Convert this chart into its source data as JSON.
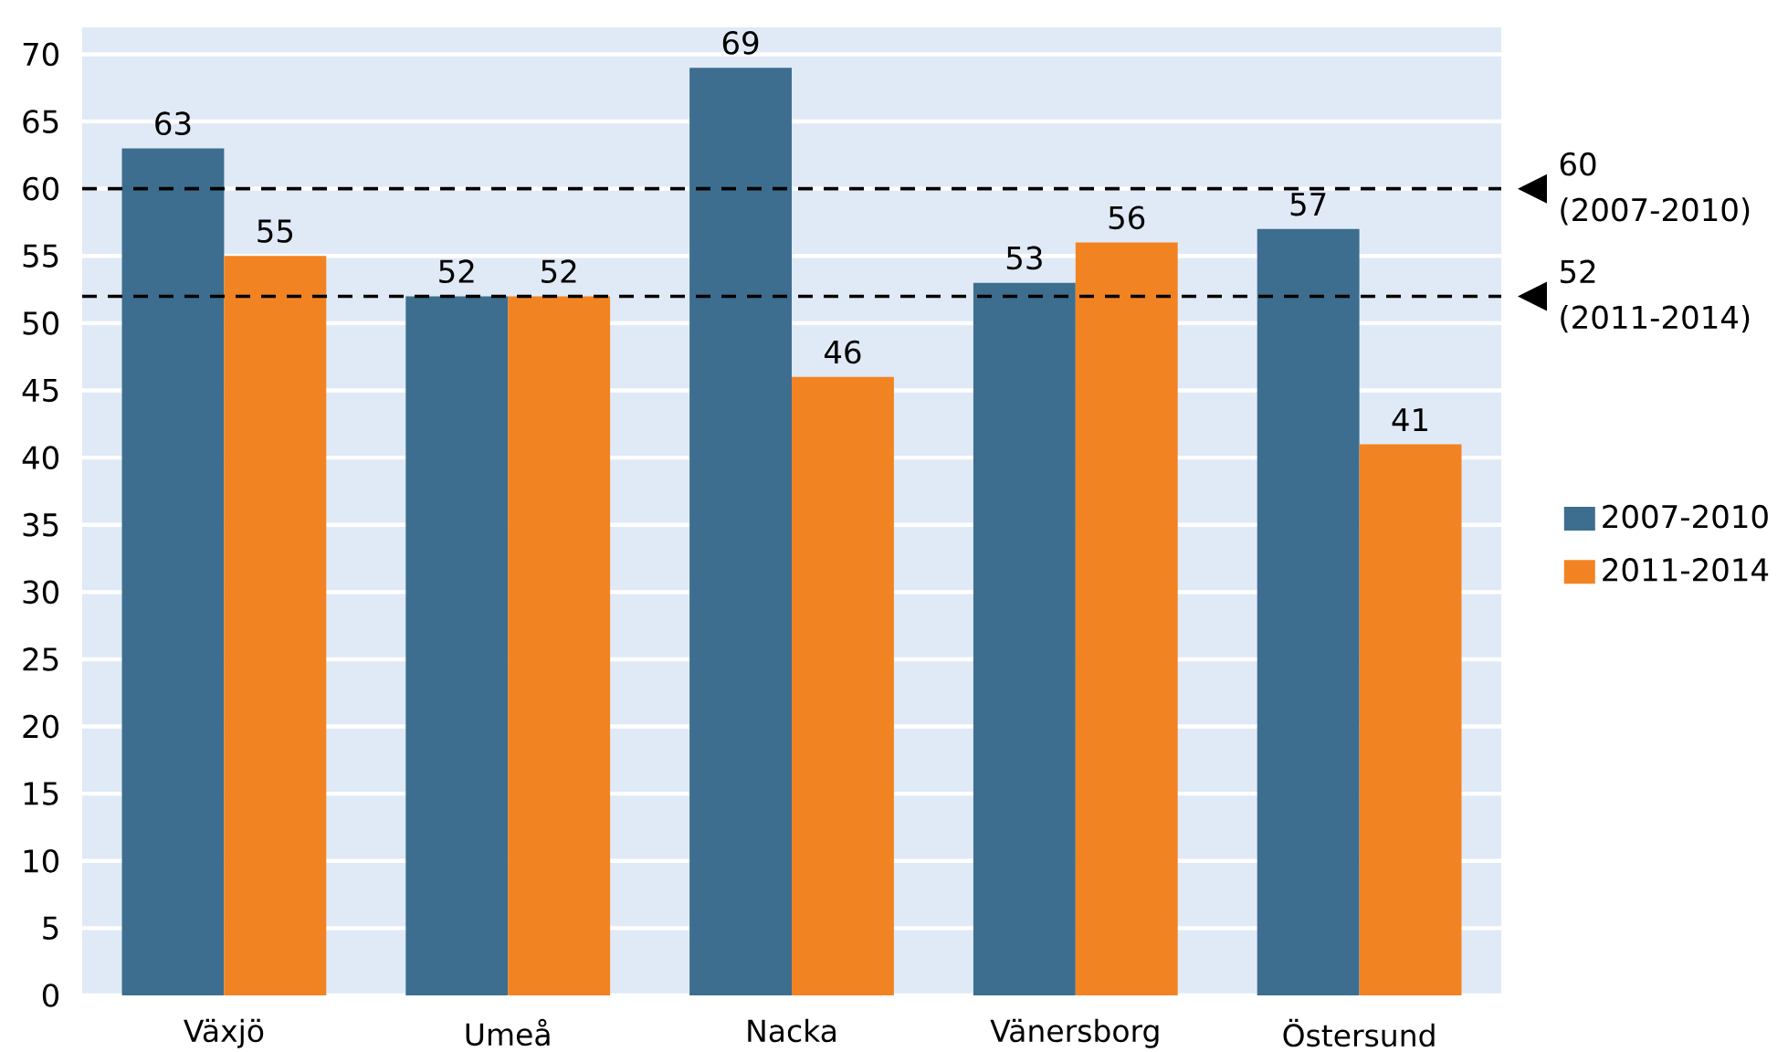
{
  "chart_data": {
    "type": "bar",
    "categories": [
      "Växjö",
      "Umeå",
      "Nacka",
      "Vänersborg",
      "Östersund"
    ],
    "series": [
      {
        "name": "2007-2010",
        "color": "#3d6e8f",
        "values": [
          63,
          52,
          69,
          53,
          57
        ]
      },
      {
        "name": "2011-2014",
        "color": "#f28322",
        "values": [
          55,
          52,
          46,
          56,
          41
        ]
      }
    ],
    "ylim": [
      0,
      72
    ],
    "yticks": [
      0,
      5,
      10,
      15,
      20,
      25,
      30,
      35,
      40,
      45,
      50,
      55,
      60,
      65,
      70
    ],
    "grid": "y",
    "legend": "right",
    "data_labels": true,
    "ref_lines": [
      {
        "axis": "y",
        "value": 60,
        "label": "60 (2007-2010)",
        "color": "#000000",
        "line_style": "dashed"
      },
      {
        "axis": "y",
        "value": 52,
        "label": "52 (2011-2014)",
        "color": "#000000",
        "line_style": "dashed"
      }
    ]
  }
}
